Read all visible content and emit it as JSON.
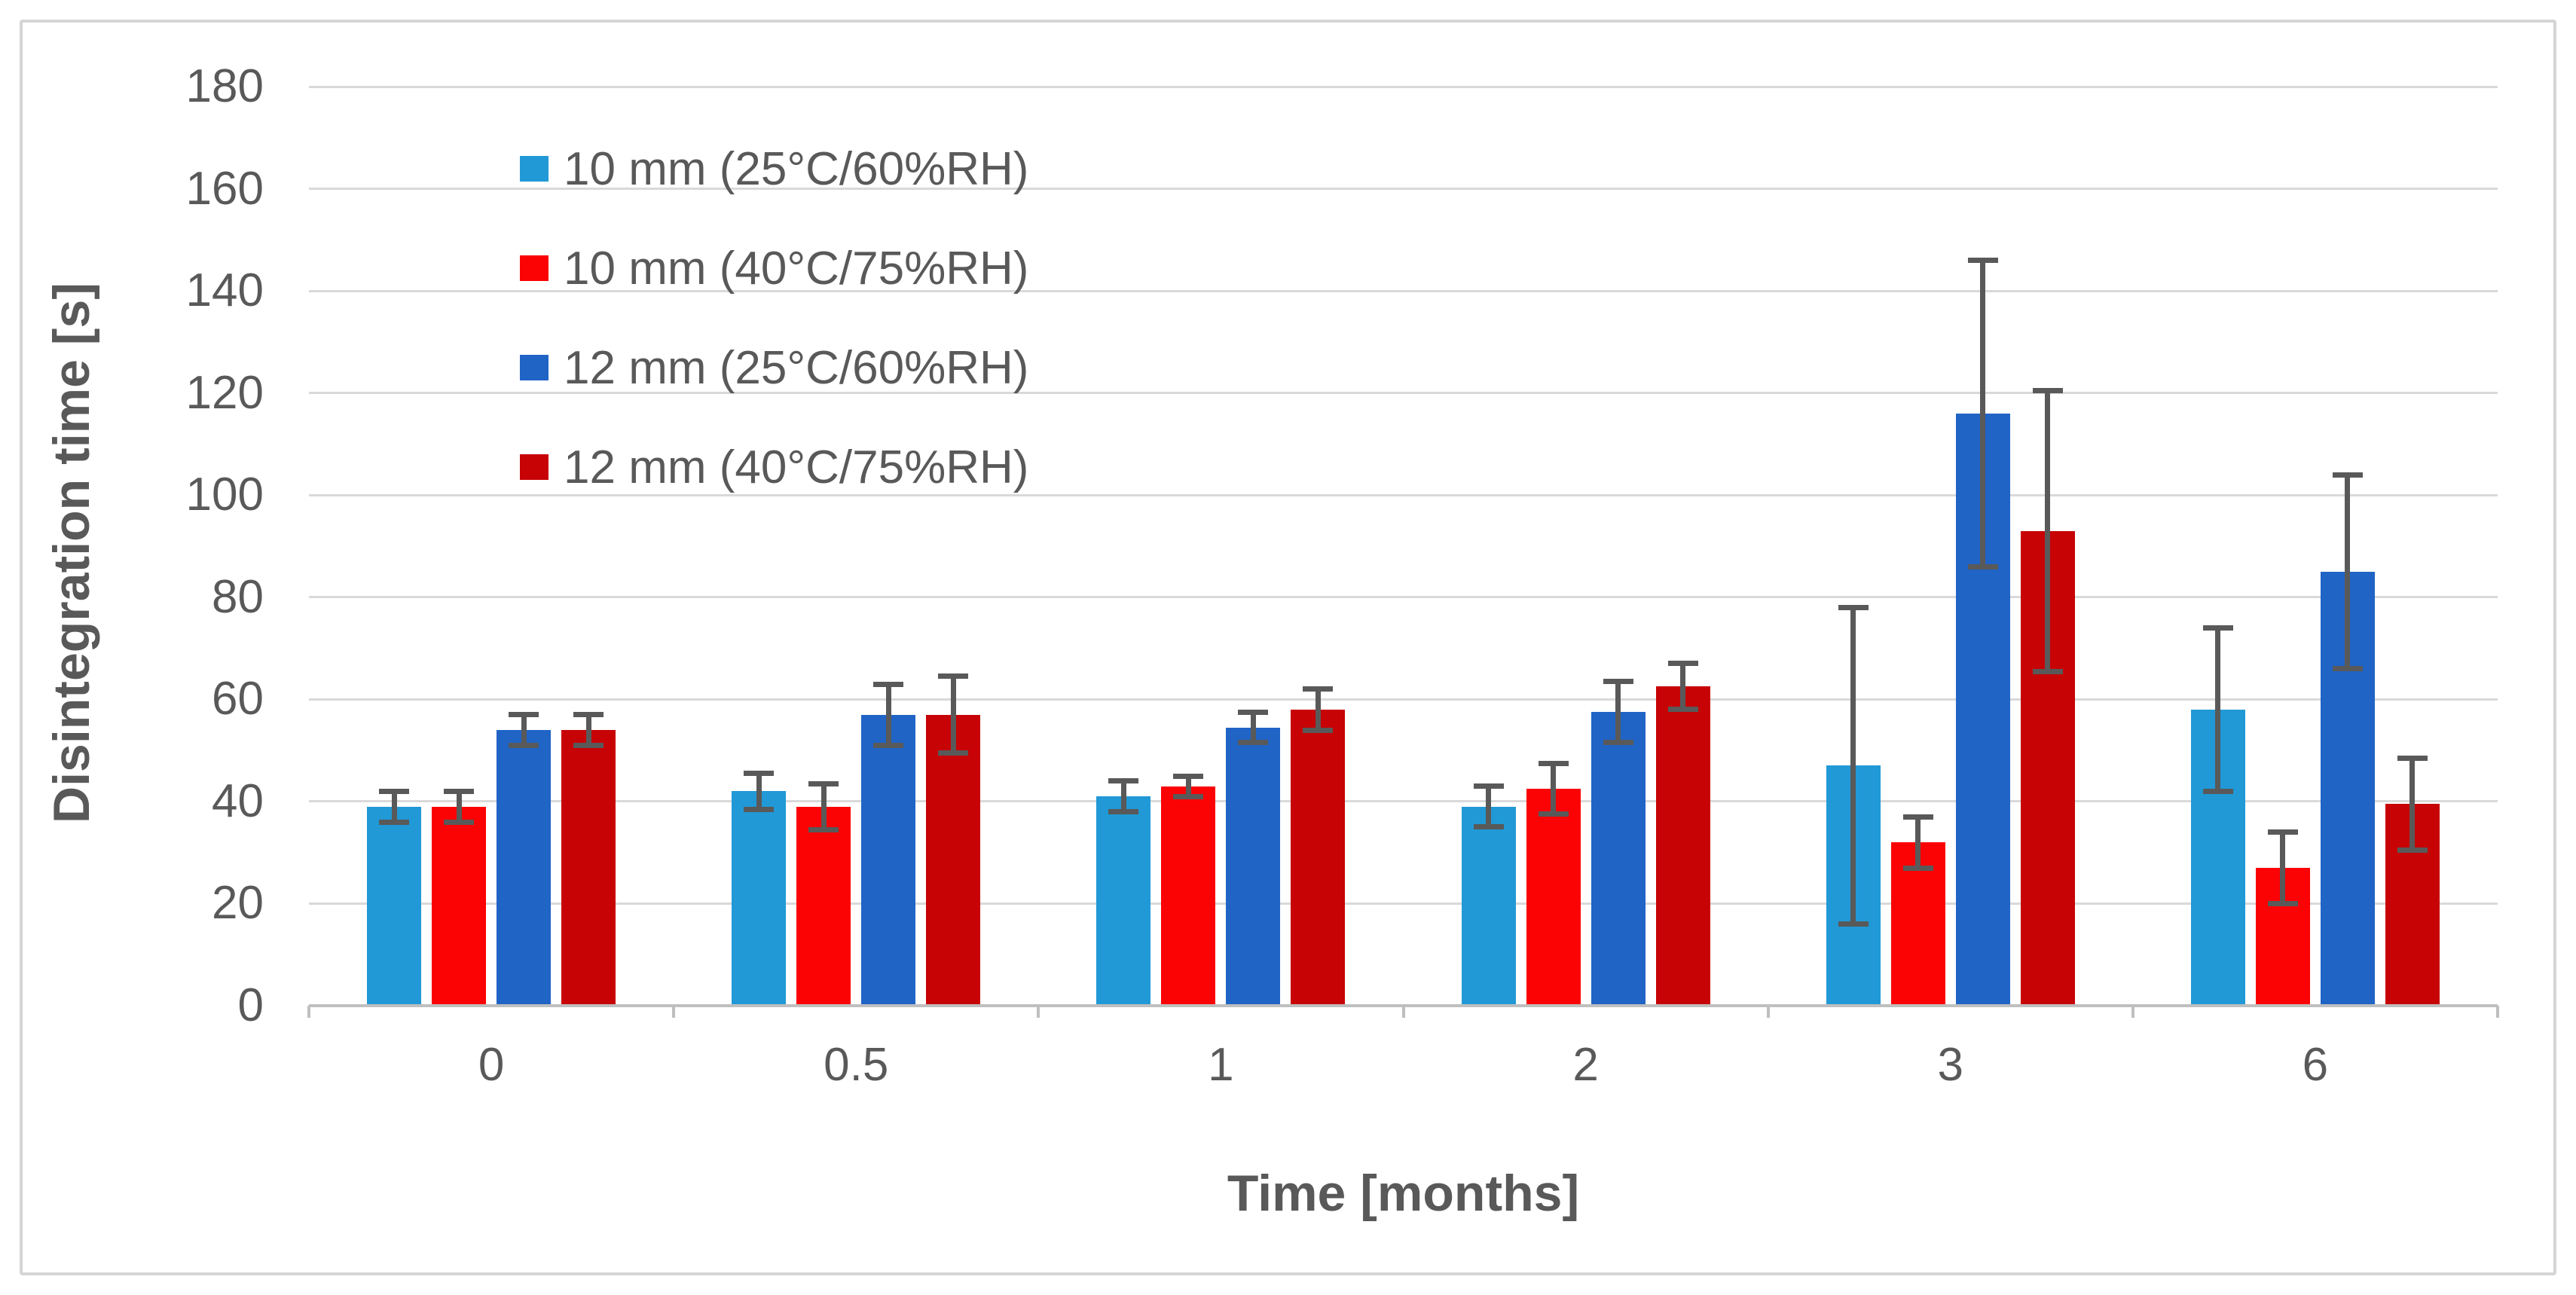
{
  "figure": {
    "border_color": "#d5d5d5",
    "background": "#ffffff"
  },
  "chart_data": {
    "type": "bar",
    "title": "",
    "categories": [
      "0",
      "0.5",
      "1",
      "2",
      "3",
      "6"
    ],
    "series": [
      {
        "name": "10 mm (25°C/60%RH)",
        "color": "#2199d6",
        "values": [
          39,
          42,
          41,
          39,
          47,
          58
        ],
        "errors": [
          3,
          3.5,
          3,
          4,
          31,
          16
        ]
      },
      {
        "name": "10 mm (40°C/75%RH)",
        "color": "#fb0204",
        "values": [
          39,
          39,
          43,
          42.5,
          32,
          27
        ],
        "errors": [
          3,
          4.5,
          2,
          5,
          5,
          7
        ]
      },
      {
        "name": "12 mm (25°C/60%RH)",
        "color": "#2064c6",
        "values": [
          54,
          57,
          54.5,
          57.5,
          116,
          85
        ],
        "errors": [
          3,
          6,
          3,
          6,
          30,
          19
        ]
      },
      {
        "name": "12 mm (40°C/75%RH)",
        "color": "#c70305",
        "values": [
          54,
          57,
          58,
          62.5,
          93,
          39.5
        ],
        "errors": [
          3,
          7.5,
          4,
          4.5,
          27.5,
          9
        ]
      }
    ],
    "xlabel": "Time [months]",
    "ylabel": "Disintegration time [s]",
    "ylim": [
      0,
      180
    ],
    "yticks": [
      0,
      20,
      40,
      60,
      80,
      100,
      120,
      140,
      160,
      180
    ],
    "grid": true,
    "legend_position": "top-left-inside",
    "error_bars": true,
    "gridline_color": "#d9d9d9",
    "axis_line_color": "#bfbfbf",
    "error_bar_color": "#595959",
    "text_color": "#595959"
  }
}
